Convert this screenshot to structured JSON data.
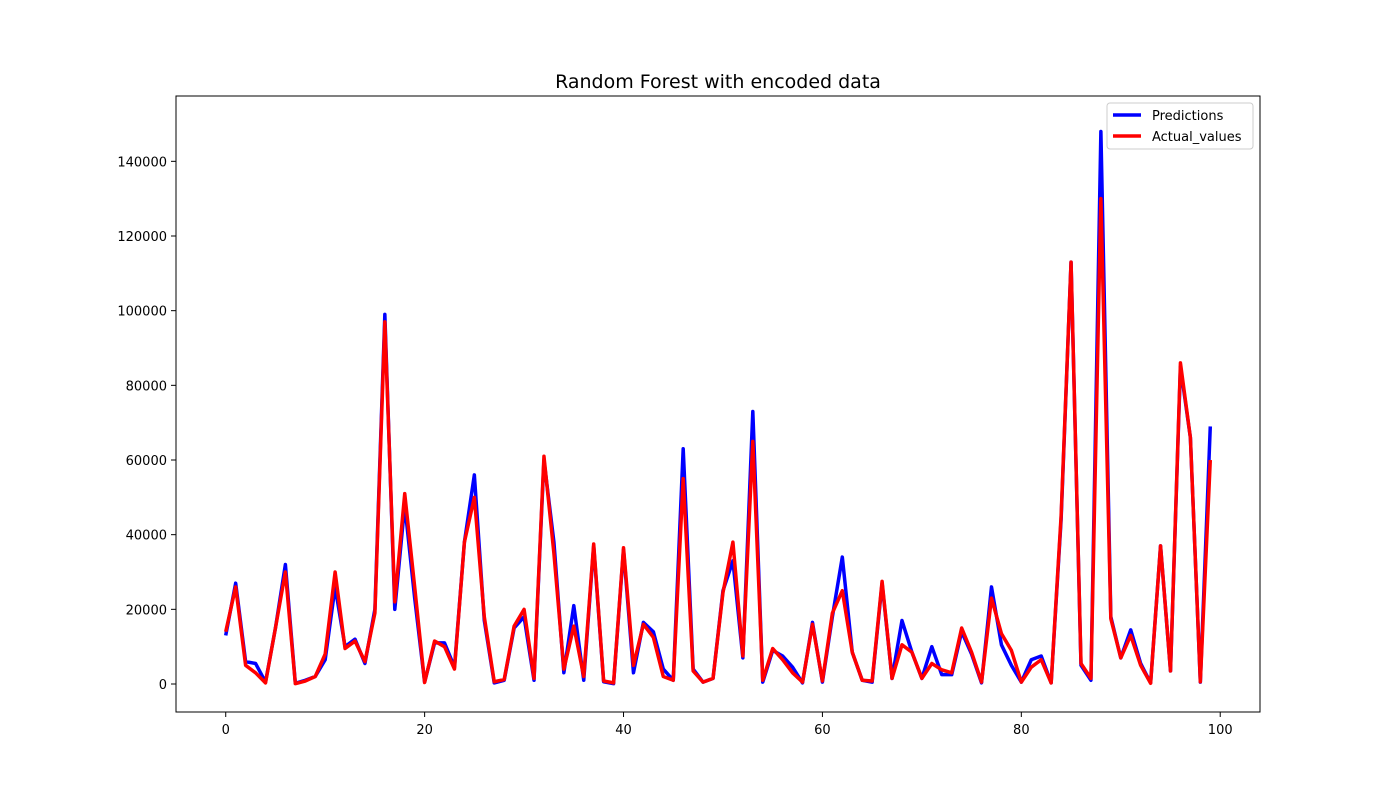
{
  "chart_data": {
    "type": "line",
    "title": "Random Forest with encoded data",
    "xlabel": "",
    "ylabel": "",
    "xlim": [
      -5,
      104
    ],
    "ylim": [
      -7500,
      157500
    ],
    "xticks": [
      0,
      20,
      40,
      60,
      80,
      100
    ],
    "yticks": [
      0,
      20000,
      40000,
      60000,
      80000,
      100000,
      120000,
      140000
    ],
    "legend_position": "top-right",
    "series": [
      {
        "name": "Predictions",
        "color": "#0000ff",
        "values": [
          13000,
          27000,
          6000,
          5500,
          500,
          15000,
          32000,
          200,
          1000,
          2000,
          6500,
          26000,
          10000,
          12000,
          5500,
          20000,
          99000,
          20000,
          48000,
          23000,
          500,
          11000,
          11000,
          4500,
          38000,
          56000,
          17000,
          300,
          1000,
          15000,
          18000,
          1000,
          60000,
          38000,
          3000,
          21000,
          1000,
          37000,
          600,
          100,
          36000,
          3000,
          16500,
          14000,
          4000,
          1000,
          63000,
          4000,
          500,
          1500,
          25000,
          33000,
          7000,
          73000,
          500,
          9000,
          7500,
          4500,
          300,
          16500,
          500,
          18000,
          34000,
          8500,
          1000,
          500,
          27000,
          1500,
          17000,
          8500,
          1500,
          10000,
          2500,
          2500,
          14000,
          8000,
          300,
          26000,
          10500,
          5000,
          500,
          6500,
          7500,
          300,
          44000,
          113000,
          5000,
          1000,
          148000,
          18000,
          7000,
          14500,
          5500,
          300,
          37000,
          3500,
          85000,
          66000,
          500,
          69000
        ]
      },
      {
        "name": "Actual_values",
        "color": "#ff0000",
        "values": [
          14000,
          26000,
          5000,
          3000,
          300,
          15000,
          30000,
          100,
          800,
          2000,
          8000,
          30000,
          9500,
          11500,
          6000,
          19000,
          97000,
          22000,
          51000,
          26000,
          400,
          11500,
          10000,
          4000,
          38000,
          50000,
          18000,
          600,
          1200,
          15500,
          20000,
          1500,
          61000,
          35000,
          4000,
          15500,
          2000,
          37500,
          800,
          300,
          36500,
          5000,
          16000,
          12500,
          2000,
          1000,
          55000,
          3500,
          500,
          1500,
          24500,
          38000,
          7500,
          65000,
          1000,
          9500,
          6500,
          3000,
          500,
          16000,
          800,
          19000,
          25000,
          8500,
          1000,
          800,
          27500,
          1500,
          10500,
          8500,
          1500,
          5500,
          3800,
          3000,
          15000,
          8500,
          500,
          23000,
          13500,
          9000,
          500,
          4500,
          6500,
          300,
          45000,
          113000,
          5500,
          1500,
          130000,
          17500,
          7000,
          13000,
          5000,
          200,
          37000,
          3500,
          86000,
          66000,
          600,
          60000
        ]
      }
    ]
  }
}
